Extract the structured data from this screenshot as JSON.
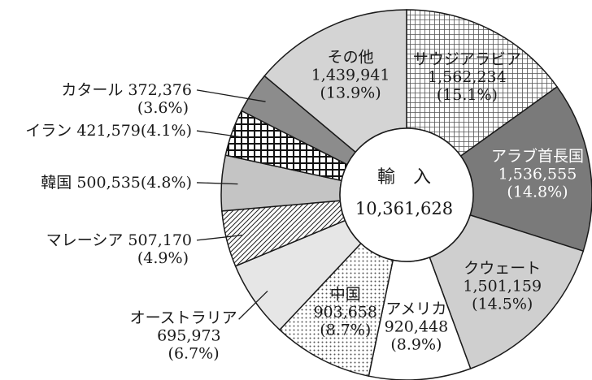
{
  "chart_data": {
    "type": "pie",
    "donut": true,
    "center": {
      "title": "輸　入",
      "value": "10,361,628"
    },
    "slices": [
      {
        "name": "サウジアラビア",
        "value": 1562234,
        "value_label": "1,562,234",
        "percent_label": "(15.1%)",
        "fill": "grid-fine",
        "label_pos": "inside"
      },
      {
        "name": "アラブ首長国",
        "value": 1536555,
        "value_label": "1,536,555",
        "percent_label": "(14.8%)",
        "fill": "dark-gray",
        "label_pos": "inside"
      },
      {
        "name": "クウェート",
        "value": 1501159,
        "value_label": "1,501,159",
        "percent_label": "(14.5%)",
        "fill": "light-gray",
        "label_pos": "inside"
      },
      {
        "name": "アメリカ",
        "value": 920448,
        "value_label": "920,448",
        "percent_label": "(8.9%)",
        "fill": "white",
        "label_pos": "inside"
      },
      {
        "name": "中国",
        "value": 903658,
        "value_label": "903,658",
        "percent_label": "(8.7%)",
        "fill": "dots",
        "label_pos": "inside"
      },
      {
        "name": "オーストラリア",
        "value": 695973,
        "value_label": "695,973",
        "percent_label": "(6.7%)",
        "fill": "very-light-gray",
        "label_pos": "outside"
      },
      {
        "name": "マレーシア",
        "value": 507170,
        "value_label": "507,170",
        "percent_label": "(4.9%)",
        "fill": "diagonal",
        "label_pos": "outside"
      },
      {
        "name": "韓国",
        "value": 500535,
        "value_label": "500,535",
        "percent_label": "(4.8%)",
        "fill": "mid-gray",
        "label_pos": "outside"
      },
      {
        "name": "イラン",
        "value": 421579,
        "value_label": "421,579",
        "percent_label": "(4.1%)",
        "fill": "grid-coarse",
        "label_pos": "outside"
      },
      {
        "name": "カタール",
        "value": 372376,
        "value_label": "372,376",
        "percent_label": "(3.6%)",
        "fill": "darker-gray",
        "label_pos": "outside"
      },
      {
        "name": "その他",
        "value": 1439941,
        "value_label": "1,439,941",
        "percent_label": "(13.9%)",
        "fill": "pale-gray",
        "label_pos": "inside"
      }
    ],
    "colors": {
      "dark-gray": "#7a7a7a",
      "darker-gray": "#8c8c8c",
      "light-gray": "#cfcfcf",
      "very-light-gray": "#e6e6e6",
      "mid-gray": "#c4c4c4",
      "pale-gray": "#d4d4d4",
      "white": "#ffffff",
      "stroke": "#1a1a1a"
    }
  }
}
